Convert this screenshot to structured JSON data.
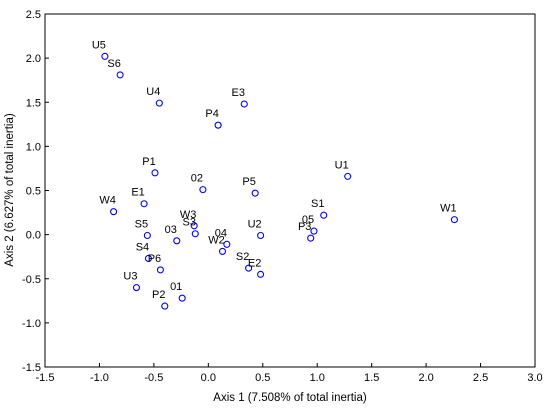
{
  "chart_data": {
    "type": "scatter",
    "title": "",
    "xlabel": "Axis 1 (7.508% of total inertia)",
    "ylabel": "Axis 2 (6.627% of total inertia)",
    "xlim": [
      -1.5,
      3.0
    ],
    "ylim": [
      -1.5,
      2.5
    ],
    "xticks": [
      "-1.5",
      "-1.0",
      "-0.5",
      "0.0",
      "0.5",
      "1.0",
      "1.5",
      "2.0",
      "2.5",
      "3.0"
    ],
    "yticks": [
      "-1.5",
      "-1.0",
      "-0.5",
      "0.0",
      "0.5",
      "1.0",
      "1.5",
      "2.0",
      "2.5"
    ],
    "grid": false,
    "marker_color": "#0000ff",
    "points": [
      {
        "label": "U5",
        "x": -0.95,
        "y": 2.02
      },
      {
        "label": "S6",
        "x": -0.81,
        "y": 1.81
      },
      {
        "label": "U4",
        "x": -0.45,
        "y": 1.49
      },
      {
        "label": "E3",
        "x": 0.33,
        "y": 1.48
      },
      {
        "label": "P4",
        "x": 0.09,
        "y": 1.24
      },
      {
        "label": "U1",
        "x": 1.28,
        "y": 0.66
      },
      {
        "label": "W1",
        "x": 2.26,
        "y": 0.17
      },
      {
        "label": "P1",
        "x": -0.49,
        "y": 0.7
      },
      {
        "label": "02",
        "x": -0.05,
        "y": 0.51
      },
      {
        "label": "P5",
        "x": 0.43,
        "y": 0.47
      },
      {
        "label": "E1",
        "x": -0.59,
        "y": 0.35
      },
      {
        "label": "W4",
        "x": -0.87,
        "y": 0.26
      },
      {
        "label": "S1",
        "x": 1.06,
        "y": 0.22
      },
      {
        "label": "W3",
        "x": -0.13,
        "y": 0.1
      },
      {
        "label": "S5",
        "x": -0.56,
        "y": -0.01
      },
      {
        "label": "S3",
        "x": -0.12,
        "y": 0.01
      },
      {
        "label": "03",
        "x": -0.29,
        "y": -0.07
      },
      {
        "label": "05",
        "x": 0.97,
        "y": 0.04
      },
      {
        "label": "U2",
        "x": 0.48,
        "y": -0.01
      },
      {
        "label": "P3",
        "x": 0.94,
        "y": -0.04
      },
      {
        "label": "04",
        "x": 0.17,
        "y": -0.11
      },
      {
        "label": "W2",
        "x": 0.13,
        "y": -0.19
      },
      {
        "label": "S4",
        "x": -0.55,
        "y": -0.27
      },
      {
        "label": "P6",
        "x": -0.44,
        "y": -0.4
      },
      {
        "label": "S2",
        "x": 0.37,
        "y": -0.38
      },
      {
        "label": "E2",
        "x": 0.48,
        "y": -0.45
      },
      {
        "label": "U3",
        "x": -0.66,
        "y": -0.6
      },
      {
        "label": "01",
        "x": -0.24,
        "y": -0.72
      },
      {
        "label": "P2",
        "x": -0.4,
        "y": -0.81
      }
    ]
  }
}
